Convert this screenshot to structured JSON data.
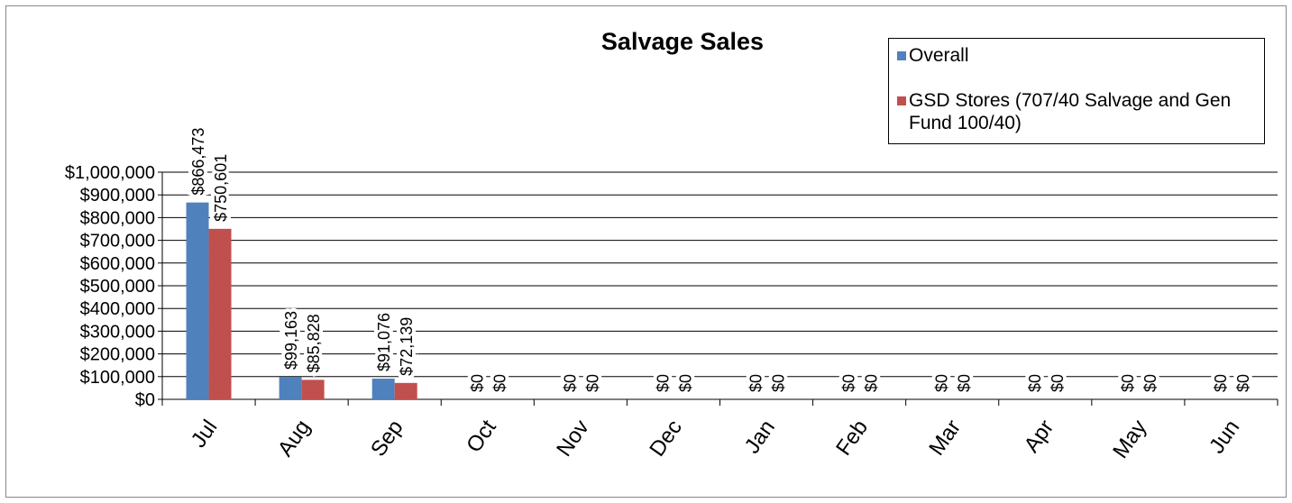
{
  "chart_data": {
    "type": "bar",
    "title": "Salvage Sales",
    "categories": [
      "Jul",
      "Aug",
      "Sep",
      "Oct",
      "Nov",
      "Dec",
      "Jan",
      "Feb",
      "Mar",
      "Apr",
      "May",
      "Jun"
    ],
    "series": [
      {
        "name": "Overall",
        "color": "#4f81bd",
        "values": [
          866473,
          99163,
          91076,
          0,
          0,
          0,
          0,
          0,
          0,
          0,
          0,
          0
        ],
        "value_labels": [
          "$866,473",
          "$99,163",
          "$91,076",
          "$0",
          "$0",
          "$0",
          "$0",
          "$0",
          "$0",
          "$0",
          "$0",
          "$0"
        ]
      },
      {
        "name": "GSD Stores (707/40 Salvage and Gen Fund 100/40)",
        "color": "#c0504d",
        "values": [
          750601,
          85828,
          72139,
          0,
          0,
          0,
          0,
          0,
          0,
          0,
          0,
          0
        ],
        "value_labels": [
          "$750,601",
          "$85,828",
          "$72,139",
          "$0",
          "$0",
          "$0",
          "$0",
          "$0",
          "$0",
          "$0",
          "$0",
          "$0"
        ]
      }
    ],
    "ylim": [
      0,
      1000000
    ],
    "yticks": [
      {
        "value": 0,
        "label": "$0"
      },
      {
        "value": 100000,
        "label": "$100,000"
      },
      {
        "value": 200000,
        "label": "$200,000"
      },
      {
        "value": 300000,
        "label": "$300,000"
      },
      {
        "value": 400000,
        "label": "$400,000"
      },
      {
        "value": 500000,
        "label": "$500,000"
      },
      {
        "value": 600000,
        "label": "$600,000"
      },
      {
        "value": 700000,
        "label": "$700,000"
      },
      {
        "value": 800000,
        "label": "$800,000"
      },
      {
        "value": 900000,
        "label": "$900,000"
      },
      {
        "value": 1000000,
        "label": "$1,000,000"
      }
    ],
    "grid": true,
    "legend": "top-right"
  }
}
